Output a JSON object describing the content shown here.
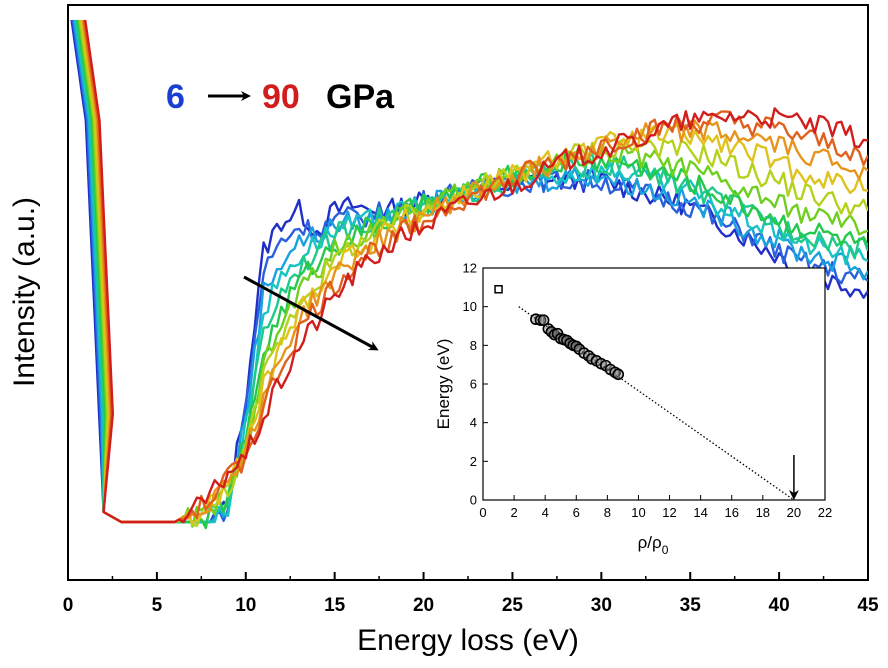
{
  "chart_data": [
    {
      "type": "line",
      "xlabel": "Energy loss (eV)",
      "ylabel": "Intensity (a.u.)",
      "xlim": [
        0,
        45
      ],
      "x_ticks": [
        "0",
        "5",
        "10",
        "15",
        "20",
        "25",
        "30",
        "35",
        "40",
        "45"
      ],
      "y_ticks": [],
      "annotation": {
        "start": "6",
        "end": "90",
        "unit": "GPa",
        "start_color": "#1a3fd0",
        "end_color": "#d21d1d"
      },
      "x": [
        0.2,
        1.0,
        2.0,
        2.5,
        3,
        4,
        5,
        6,
        7,
        8,
        9,
        10,
        11,
        12,
        13,
        14,
        15,
        16,
        17,
        18,
        19,
        20,
        21,
        22,
        23,
        24,
        25,
        26,
        27,
        28,
        29,
        30,
        31,
        32,
        33,
        34,
        35,
        36,
        37,
        38,
        39,
        40,
        41,
        42,
        43,
        44,
        45
      ],
      "series": [
        {
          "color": "#1f2fc8",
          "values": [
            100,
            80,
            2,
            1,
            0,
            0,
            0,
            0,
            0,
            0,
            3,
            25,
            54,
            60,
            62,
            58,
            62,
            63,
            62,
            62,
            63,
            64,
            65,
            66,
            66,
            67,
            67,
            68,
            68,
            68,
            68,
            68,
            67,
            66,
            65,
            64,
            63,
            61,
            59,
            57,
            55,
            53,
            51,
            49,
            48,
            47,
            46
          ]
        },
        {
          "color": "#2a60dc",
          "values": [
            100,
            80,
            2,
            1,
            0,
            0,
            0,
            0,
            0,
            0,
            3,
            23,
            50,
            56,
            59,
            58,
            60,
            61,
            61,
            62,
            63,
            64,
            65,
            66,
            66,
            67,
            67,
            68,
            68,
            68,
            68,
            68,
            67,
            66,
            65,
            64,
            63,
            61,
            59,
            58,
            56,
            54,
            52,
            51,
            50,
            49,
            48
          ]
        },
        {
          "color": "#1aa0df",
          "values": [
            100,
            80,
            2,
            1,
            0,
            0,
            0,
            0,
            0,
            0,
            3,
            21,
            46,
            52,
            56,
            57,
            59,
            60,
            60,
            61,
            62,
            63,
            64,
            65,
            66,
            67,
            67,
            68,
            68,
            69,
            69,
            69,
            68,
            67,
            66,
            65,
            64,
            62,
            61,
            59,
            57,
            56,
            54,
            53,
            52,
            51,
            50
          ]
        },
        {
          "color": "#18c3c3",
          "values": [
            100,
            80,
            2,
            1,
            0,
            0,
            0,
            0,
            0,
            0,
            3,
            19,
            42,
            49,
            53,
            56,
            58,
            59,
            60,
            61,
            62,
            63,
            64,
            65,
            66,
            67,
            68,
            68,
            69,
            69,
            70,
            70,
            70,
            69,
            68,
            67,
            66,
            64,
            62,
            61,
            59,
            58,
            56,
            55,
            54,
            53,
            52
          ]
        },
        {
          "color": "#1fc98a",
          "values": [
            100,
            80,
            2,
            1,
            0,
            0,
            0,
            0,
            0,
            1,
            4,
            17,
            38,
            46,
            51,
            54,
            57,
            59,
            60,
            61,
            62,
            63,
            64,
            65,
            66,
            67,
            68,
            69,
            70,
            70,
            71,
            71,
            71,
            70,
            69,
            68,
            67,
            65,
            64,
            62,
            61,
            59,
            58,
            57,
            56,
            55,
            54
          ]
        },
        {
          "color": "#26c84a",
          "values": [
            100,
            80,
            2,
            1,
            0,
            0,
            0,
            0,
            0,
            1,
            5,
            16,
            34,
            42,
            48,
            52,
            55,
            57,
            59,
            60,
            62,
            63,
            64,
            66,
            67,
            68,
            69,
            70,
            71,
            72,
            72,
            72,
            72,
            71,
            70,
            69,
            68,
            66,
            65,
            63,
            62,
            60,
            59,
            58,
            57,
            56,
            55
          ]
        },
        {
          "color": "#6fcf1f",
          "values": [
            100,
            80,
            2,
            1,
            0,
            0,
            0,
            0,
            1,
            2,
            6,
            15,
            31,
            39,
            46,
            50,
            54,
            56,
            58,
            60,
            61,
            63,
            64,
            66,
            67,
            68,
            69,
            70,
            71,
            72,
            73,
            73,
            73,
            73,
            72,
            71,
            70,
            69,
            67,
            66,
            65,
            63,
            62,
            61,
            60,
            59,
            58
          ]
        },
        {
          "color": "#b4d21c",
          "values": [
            100,
            80,
            2,
            1,
            0,
            0,
            0,
            0,
            1,
            2,
            7,
            14,
            29,
            37,
            44,
            48,
            52,
            55,
            57,
            59,
            61,
            62,
            64,
            65,
            67,
            68,
            69,
            70,
            72,
            73,
            74,
            74,
            75,
            75,
            75,
            74,
            74,
            73,
            72,
            70,
            69,
            68,
            66,
            65,
            64,
            63,
            62
          ]
        },
        {
          "color": "#e0c21c",
          "values": [
            100,
            80,
            2,
            1,
            0,
            0,
            0,
            0,
            1,
            3,
            8,
            14,
            27,
            35,
            42,
            47,
            51,
            54,
            56,
            58,
            60,
            62,
            63,
            65,
            66,
            68,
            69,
            70,
            72,
            73,
            74,
            75,
            76,
            76,
            77,
            77,
            77,
            76,
            75,
            74,
            73,
            71,
            70,
            69,
            68,
            67,
            66
          ]
        },
        {
          "color": "#e6941c",
          "values": [
            100,
            80,
            2,
            1,
            0,
            0,
            0,
            0,
            2,
            4,
            9,
            14,
            25,
            33,
            40,
            45,
            49,
            52,
            55,
            57,
            59,
            61,
            63,
            64,
            66,
            67,
            69,
            70,
            71,
            73,
            74,
            75,
            76,
            77,
            78,
            78,
            78,
            78,
            77,
            77,
            76,
            75,
            74,
            73,
            72,
            71,
            70
          ]
        },
        {
          "color": "#e0601e",
          "values": [
            100,
            80,
            2,
            1,
            0,
            0,
            0,
            0,
            2,
            4,
            9,
            13,
            23,
            31,
            38,
            43,
            47,
            51,
            54,
            56,
            58,
            60,
            62,
            64,
            65,
            67,
            68,
            70,
            71,
            72,
            74,
            75,
            76,
            77,
            78,
            79,
            79,
            80,
            80,
            79,
            79,
            78,
            77,
            76,
            75,
            74,
            73
          ]
        },
        {
          "color": "#d21d1d",
          "values": [
            100,
            80,
            2,
            1,
            0,
            0,
            0,
            0,
            2,
            5,
            10,
            13,
            21,
            28,
            35,
            40,
            45,
            49,
            52,
            55,
            57,
            59,
            61,
            63,
            64,
            66,
            67,
            69,
            70,
            72,
            73,
            74,
            75,
            76,
            78,
            79,
            80,
            80,
            81,
            81,
            81,
            80,
            80,
            79,
            78,
            77,
            76
          ]
        }
      ]
    },
    {
      "type": "scatter",
      "xlabel": "ρ/ρ",
      "xlabel_sub": "0",
      "ylabel": "Energy (eV)",
      "xlim": [
        0,
        22
      ],
      "ylim": [
        0,
        12
      ],
      "x_ticks": [
        "0",
        "2",
        "4",
        "6",
        "8",
        "10",
        "12",
        "14",
        "16",
        "18",
        "20",
        "22"
      ],
      "y_ticks": [
        "0",
        "2",
        "4",
        "6",
        "8",
        "10",
        "12"
      ],
      "open_square": {
        "x": 1.0,
        "y": 10.9
      },
      "points": [
        {
          "x": 3.4,
          "y": 9.35
        },
        {
          "x": 3.7,
          "y": 9.3
        },
        {
          "x": 3.9,
          "y": 9.3
        },
        {
          "x": 4.2,
          "y": 8.85
        },
        {
          "x": 4.4,
          "y": 8.7
        },
        {
          "x": 4.6,
          "y": 8.55
        },
        {
          "x": 4.8,
          "y": 8.6
        },
        {
          "x": 5.0,
          "y": 8.35
        },
        {
          "x": 5.2,
          "y": 8.3
        },
        {
          "x": 5.4,
          "y": 8.25
        },
        {
          "x": 5.6,
          "y": 8.1
        },
        {
          "x": 5.8,
          "y": 8.0
        },
        {
          "x": 6.0,
          "y": 7.95
        },
        {
          "x": 6.2,
          "y": 7.8
        },
        {
          "x": 6.5,
          "y": 7.6
        },
        {
          "x": 6.8,
          "y": 7.45
        },
        {
          "x": 7.0,
          "y": 7.3
        },
        {
          "x": 7.3,
          "y": 7.2
        },
        {
          "x": 7.6,
          "y": 7.05
        },
        {
          "x": 7.9,
          "y": 6.95
        },
        {
          "x": 8.2,
          "y": 6.75
        },
        {
          "x": 8.5,
          "y": 6.6
        },
        {
          "x": 8.7,
          "y": 6.5
        }
      ],
      "fit_line": {
        "x": [
          2.3,
          20.0
        ],
        "y": [
          10.0,
          0.0
        ]
      },
      "arrow_at_x": 20.0
    }
  ]
}
